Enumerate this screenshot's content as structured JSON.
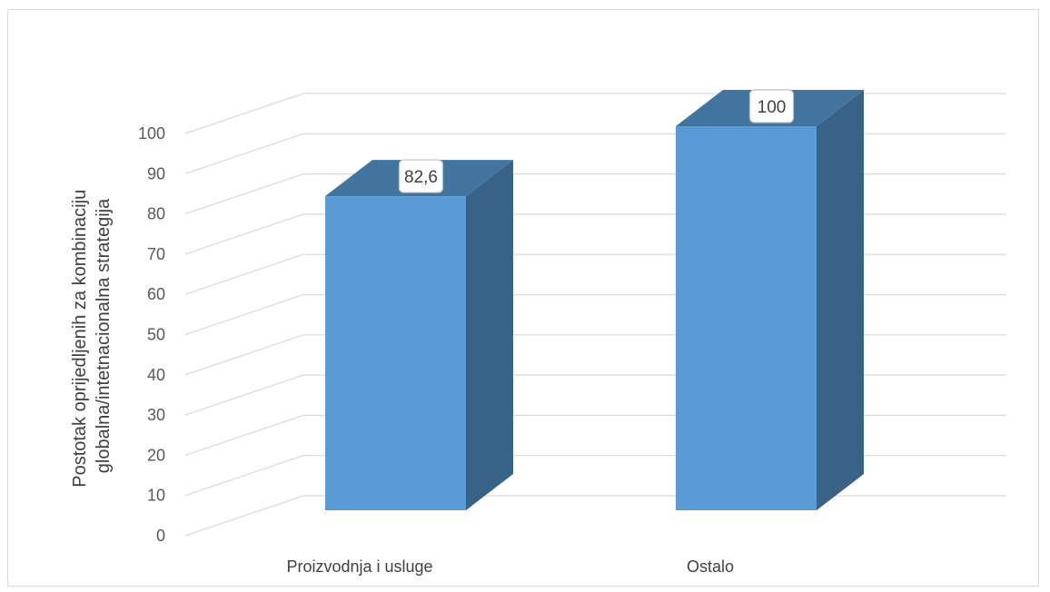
{
  "chart_data": {
    "type": "bar",
    "title": "",
    "categories": [
      "Proizvodnja i usluge",
      "Ostalo"
    ],
    "values": [
      82.6,
      100
    ],
    "data_labels": [
      "82,6",
      "100"
    ],
    "ylabel_lines": [
      "Postotak oprijedljenih za kombinaciju",
      "globalna/intetnacionalna strategija"
    ],
    "xlabel": "",
    "ylim": [
      0,
      100
    ],
    "yticks": [
      "0",
      "10",
      "20",
      "30",
      "40",
      "50",
      "60",
      "70",
      "80",
      "90",
      "100"
    ],
    "grid": true,
    "legend": "none",
    "style": "3d-column",
    "colors": {
      "bar_front": "#5b9bd5",
      "bar_side": "#386387",
      "bar_top": "#4274a0",
      "grid": "#d9d9d9",
      "tick_text": "#595959",
      "label_text": "#404040"
    }
  }
}
